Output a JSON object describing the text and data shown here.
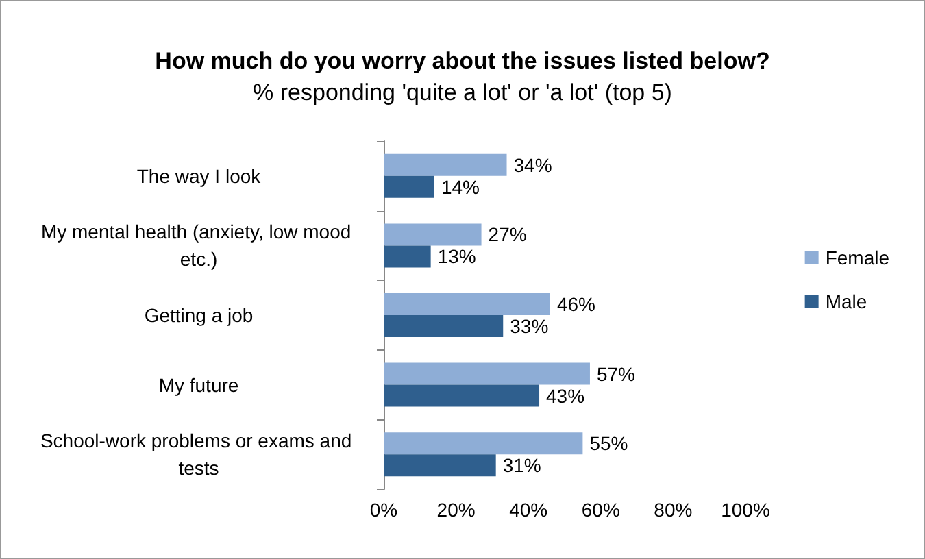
{
  "chart_data": {
    "type": "bar",
    "orientation": "horizontal",
    "title": "How much do you worry about the issues listed below?",
    "subtitle": "% responding 'quite a lot' or 'a lot' (top 5)",
    "categories": [
      "The way I look",
      "My mental health (anxiety, low mood etc.)",
      "Getting a job",
      "My future",
      "School-work problems or exams and tests"
    ],
    "series": [
      {
        "name": "Female",
        "color": "#8eadd6",
        "values": [
          34,
          27,
          46,
          57,
          55
        ],
        "value_labels": [
          "34%",
          "27%",
          "46%",
          "57%",
          "55%"
        ]
      },
      {
        "name": "Male",
        "color": "#2f5f8e",
        "values": [
          14,
          13,
          33,
          43,
          31
        ],
        "value_labels": [
          "14%",
          "13%",
          "33%",
          "43%",
          "31%"
        ]
      }
    ],
    "xlim": [
      0,
      100
    ],
    "xticks": [
      {
        "value": 0,
        "label": "0%"
      },
      {
        "value": 20,
        "label": "20%"
      },
      {
        "value": 40,
        "label": "40%"
      },
      {
        "value": 60,
        "label": "60%"
      },
      {
        "value": 80,
        "label": "80%"
      },
      {
        "value": 100,
        "label": "100%"
      }
    ],
    "grid": false,
    "legend": "right"
  }
}
